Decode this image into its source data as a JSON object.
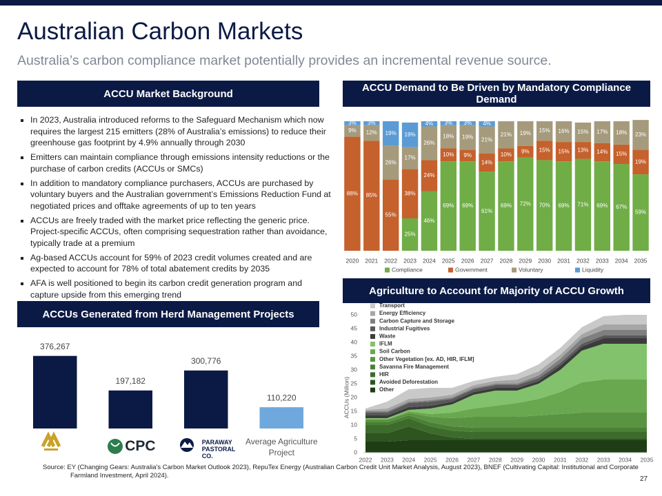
{
  "header": {
    "title": "Australian Carbon Markets",
    "subtitle": "Australia’s carbon compliance market potentially provides an incremental revenue source."
  },
  "background": {
    "heading": "ACCU Market Background",
    "bullets": [
      "In 2023, Australia introduced reforms to the Safeguard Mechanism which now requires the largest 215 emitters (28% of Australia’s emissions) to reduce their greenhouse gas footprint by 4.9% annually through 2030",
      "Emitters can maintain compliance through emissions intensity reductions or the purchase of carbon credits (ACCUs or SMCs)",
      "In addition to mandatory compliance purchasers, ACCUs are purchased by voluntary buyers and the Australian government’s Emissions Reduction Fund at negotiated prices and offtake agreements of up to ten years",
      "ACCUs are freely traded with the market price reflecting the generic price. Project-specific ACCUs, often comprising sequestration rather than avoidance, typically trade at a premium",
      "Ag-based ACCUs account for 59% of 2023 credit volumes created and are expected to account for 78% of total abatement credits by 2035",
      "AFA is well positioned to begin its carbon credit generation program and capture upside from this emerging trend"
    ]
  },
  "chart_data": [
    {
      "type": "bar",
      "title": "ACCUs Generated from Herd Management Projects",
      "categories": [
        null,
        "CPC",
        "PARAWAY PASTORAL CO.",
        "Average Agriculture Project"
      ],
      "values": [
        376267,
        197182,
        300776,
        110220
      ],
      "value_labels": [
        "376,267",
        "197,182",
        "300,776",
        "110,220"
      ],
      "colors": [
        "#0b1a45",
        "#0b1a45",
        "#0b1a45",
        "#6fa8dc"
      ],
      "ylim": [
        0,
        400000
      ]
    },
    {
      "type": "bar",
      "stacked": true,
      "title": "ACCU Demand to Be Driven by Mandatory Compliance Demand",
      "categories": [
        "2020",
        "2021",
        "2022",
        "2023",
        "2024",
        "2025",
        "2026",
        "2027",
        "2028",
        "2029",
        "2030",
        "2031",
        "2032",
        "2033",
        "2034",
        "2035"
      ],
      "ylim": [
        0,
        100
      ],
      "legend": "bottom",
      "series": [
        {
          "name": "Compliance",
          "color": "#70ad47",
          "values": [
            0,
            0,
            0,
            25,
            46,
            69,
            69,
            61,
            69,
            72,
            70,
            69,
            71,
            69,
            67,
            59
          ],
          "value_labels": [
            null,
            null,
            null,
            "25%",
            "46%",
            "69%",
            "69%",
            "61%",
            "69%",
            "72%",
            "70%",
            "69%",
            "71%",
            "69%",
            "67%",
            "59%"
          ]
        },
        {
          "name": "Government",
          "color": "#c5612c",
          "values": [
            88,
            85,
            55,
            38,
            24,
            10,
            9,
            14,
            10,
            9,
            15,
            15,
            13,
            14,
            15,
            19
          ],
          "value_labels": [
            "88%",
            "85%",
            "55%",
            "38%",
            "24%",
            "10%",
            "9%",
            "14%",
            "10%",
            "9%",
            "15%",
            "15%",
            "13%",
            "14%",
            "15%",
            "19%"
          ]
        },
        {
          "name": "Voluntary",
          "color": "#a59b7c",
          "values": [
            9,
            12,
            26,
            17,
            26,
            18,
            19,
            21,
            21,
            19,
            15,
            16,
            15,
            17,
            18,
            23
          ],
          "value_labels": [
            "9%",
            "12%",
            "26%",
            "17%",
            "26%",
            "18%",
            "19%",
            "21%",
            "21%",
            "19%",
            "15%",
            "16%",
            "15%",
            "17%",
            "18%",
            "23%"
          ]
        },
        {
          "name": "Liquidity",
          "color": "#5b9bd5",
          "values": [
            3,
            3,
            19,
            19,
            4,
            3,
            3,
            4,
            0,
            0,
            0,
            0,
            0,
            0,
            0,
            0
          ],
          "value_labels": [
            "3%",
            "3%",
            "19%",
            "19%",
            "4%",
            "3%",
            "3%",
            "4%",
            null,
            null,
            null,
            null,
            null,
            null,
            null,
            null
          ]
        }
      ]
    },
    {
      "type": "area",
      "stacked": true,
      "title": "Agriculture to Account for Majority of ACCU Growth",
      "y_label": "ACCUs (Million)",
      "legend": "top-left",
      "x": [
        2022,
        2023,
        2024,
        2025,
        2026,
        2027,
        2028,
        2029,
        2030,
        2031,
        2032,
        2033,
        2034,
        2035
      ],
      "xlim": [
        2022,
        2035
      ],
      "xticks": [
        2022,
        2023,
        2024,
        2025,
        2026,
        2027,
        2028,
        2029,
        2030,
        2031,
        2032,
        2033,
        2034,
        2035
      ],
      "ylim": [
        0,
        50
      ],
      "yticks": [
        0,
        5,
        10,
        15,
        20,
        25,
        30,
        35,
        40,
        45,
        50
      ],
      "series": [
        {
          "name": "Transport",
          "color": "#c9c9c9",
          "values": [
            0.5,
            2.5,
            3.5,
            3.5,
            2.5,
            1.5,
            1.5,
            2,
            2.5,
            2.5,
            2.5,
            3,
            3.5,
            3.5
          ]
        },
        {
          "name": "Energy Efficiency",
          "color": "#a6a6a6",
          "values": [
            0.5,
            1,
            1,
            1,
            1,
            1,
            1,
            1.5,
            1.5,
            1.5,
            1.5,
            2,
            2,
            2
          ]
        },
        {
          "name": "Carbon Capture and Storage",
          "color": "#7f7f7f",
          "values": [
            0.5,
            0.5,
            0.5,
            0.5,
            0.5,
            0.5,
            0.5,
            0.5,
            1,
            1.5,
            2,
            2,
            2,
            2
          ]
        },
        {
          "name": "Industrial Fugitives",
          "color": "#595959",
          "values": [
            1,
            1,
            1.5,
            1.5,
            1,
            1,
            1,
            1,
            1,
            1,
            1,
            1,
            1,
            1
          ]
        },
        {
          "name": "Waste",
          "color": "#3b3b3b",
          "values": [
            1,
            1,
            1,
            1,
            1,
            1,
            1,
            1,
            1,
            1.5,
            1.5,
            2,
            2,
            2
          ]
        },
        {
          "name": "IFLM",
          "color": "#82c26c",
          "values": [
            0.5,
            0.5,
            0.5,
            2,
            3,
            5,
            5.5,
            4.5,
            5.5,
            8,
            11.5,
            13,
            13,
            13
          ]
        },
        {
          "name": "Soil Carbon",
          "color": "#6aa84f",
          "values": [
            0,
            0,
            0.5,
            1,
            2,
            3,
            4,
            5,
            6,
            8,
            11,
            12,
            12,
            12
          ]
        },
        {
          "name": "Other Vegetation [ex. AD, HIR, IFLM]",
          "color": "#5a9442",
          "values": [
            1,
            1,
            1,
            2,
            3,
            4,
            4,
            4,
            4.5,
            5,
            5.5,
            5.5,
            5.5,
            5.5
          ]
        },
        {
          "name": "Savanna Fire Management",
          "color": "#4b7f36",
          "values": [
            1,
            1,
            1,
            1.5,
            1.5,
            1.5,
            1.5,
            1.5,
            1.5,
            1.5,
            1.5,
            1.5,
            1.5,
            1.5
          ]
        },
        {
          "name": "HIR",
          "color": "#3d6b2b",
          "values": [
            3,
            3,
            3,
            2.5,
            2.5,
            2.5,
            2.5,
            2.5,
            2.5,
            2.5,
            2.5,
            2.5,
            2.5,
            2.5
          ]
        },
        {
          "name": "Avoided Deforestation",
          "color": "#2e5520",
          "values": [
            3,
            3,
            5,
            2.5,
            1,
            0.5,
            0.5,
            0.5,
            0.5,
            0.5,
            0.5,
            0.5,
            0.5,
            0.5
          ]
        },
        {
          "name": "Other",
          "color": "#1f3d14",
          "values": [
            4,
            4,
            4.5,
            4.5,
            4.5,
            4.5,
            4.5,
            4.5,
            4.5,
            4.5,
            4.5,
            4.5,
            4.5,
            4.5
          ]
        }
      ]
    }
  ],
  "footer": {
    "source": "Source:  EY (Changing Gears: Australia's Carbon Market Outlook 2023), RepuTex Energy (Australian Carbon Credit Unit Market Analysis, August 2023), BNEF (Cultivating Capital: Institutional and Corporate Farmland Investment, April 2024).",
    "page": "27"
  }
}
